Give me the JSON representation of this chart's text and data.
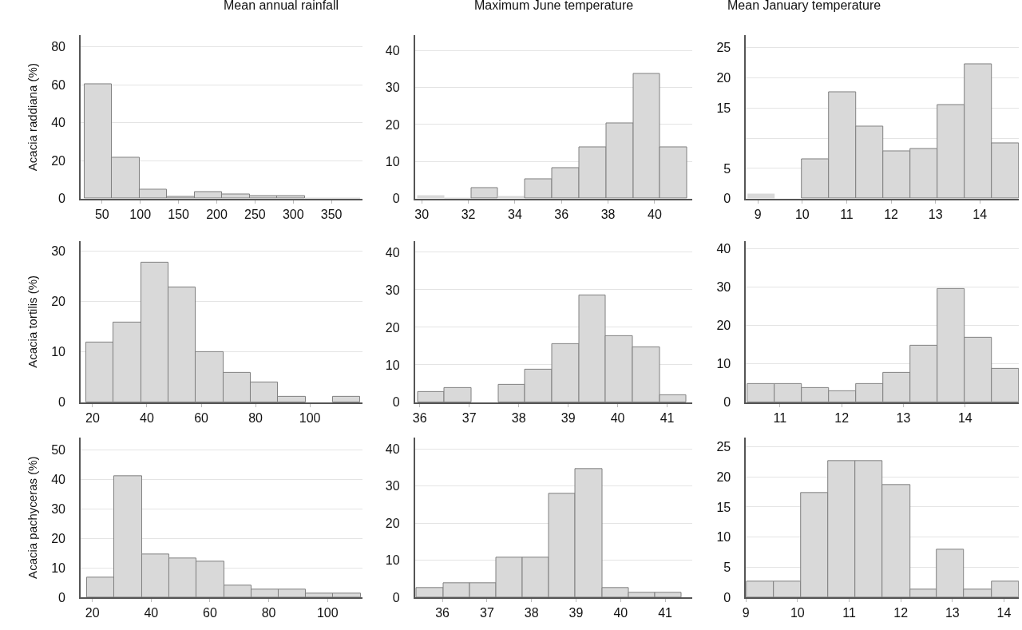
{
  "chart_data": [
    {
      "type": "histogram",
      "title": "Mean annual rainfall",
      "ylabel": "Acacia raddiana (%)",
      "color": "#d9d9d9",
      "grid": "y",
      "bins": [
        27,
        63,
        99,
        135,
        171,
        207,
        243,
        279,
        315,
        351,
        387
      ],
      "values": [
        60.5,
        21.7,
        4.9,
        1.0,
        3.7,
        2.4,
        1.6,
        1.6,
        0.4,
        0.4
      ],
      "xlim": [
        22,
        391
      ],
      "xticks": [
        50,
        100,
        150,
        200,
        250,
        300,
        350
      ],
      "ylim": [
        0,
        86
      ],
      "yticks": [
        0,
        20,
        40,
        60,
        80
      ]
    },
    {
      "type": "histogram",
      "title": "Maximum June temperature",
      "color": "#d9d9d9",
      "grid": "y",
      "bins": [
        29.8,
        30.96,
        32.12,
        33.28,
        34.44,
        35.6,
        36.76,
        37.92,
        39.08,
        40.24,
        41.4
      ],
      "values": [
        0.9,
        0.4,
        2.9,
        0.8,
        5.2,
        8.2,
        13.8,
        20.3,
        33.6,
        13.8
      ],
      "xlim": [
        29.7,
        41.6
      ],
      "xticks": [
        30,
        32,
        34,
        36,
        38,
        40
      ],
      "ylim": [
        0,
        44
      ],
      "yticks": [
        0,
        10,
        20,
        30,
        40
      ]
    },
    {
      "type": "histogram",
      "title": "Mean January temperature",
      "color": "#d9d9d9",
      "grid": "y",
      "bins": [
        8.76,
        9.37,
        9.98,
        10.6,
        11.21,
        11.83,
        12.44,
        13.04,
        13.66,
        14.27,
        14.88
      ],
      "values": [
        0.8,
        0,
        6.5,
        17.6,
        12.0,
        7.8,
        8.2,
        15.5,
        22.3,
        9.1
      ],
      "xlim": [
        8.73,
        14.88
      ],
      "xticks": [
        9,
        10,
        11,
        12,
        13,
        14
      ],
      "ylim": [
        0,
        27
      ],
      "yticks": [
        0,
        5,
        {
          "value": 10,
          "label": null
        },
        15,
        20,
        25
      ]
    },
    {
      "type": "histogram",
      "ylabel": "Acacia tortilis (%)",
      "color": "#d9d9d9",
      "grid": "y",
      "bins": [
        17.6,
        27.7,
        37.8,
        47.9,
        58,
        68.1,
        78.2,
        88.3,
        98.4,
        108.5,
        118.6
      ],
      "values": [
        11.9,
        15.9,
        27.7,
        22.8,
        10.0,
        5.9,
        4.0,
        1.1,
        0,
        1.1
      ],
      "xlim": [
        15.6,
        119.5
      ],
      "xticks": [
        20,
        40,
        60,
        80,
        100
      ],
      "ylim": [
        0,
        32
      ],
      "yticks": [
        0,
        10,
        20,
        30
      ]
    },
    {
      "type": "histogram",
      "color": "#d9d9d9",
      "grid": "y",
      "bins": [
        35.96,
        36.5,
        37.05,
        37.59,
        38.13,
        38.67,
        39.22,
        39.76,
        40.31,
        40.85,
        41.39
      ],
      "values": [
        2.8,
        3.8,
        0,
        4.7,
        8.8,
        15.6,
        28.6,
        17.6,
        14.6,
        1.9
      ],
      "xlim": [
        35.9,
        41.5
      ],
      "xticks": [
        36,
        37,
        38,
        39,
        40,
        41
      ],
      "ylim": [
        0,
        43
      ],
      "yticks": [
        0,
        10,
        20,
        30,
        40
      ]
    },
    {
      "type": "histogram",
      "color": "#d9d9d9",
      "grid": "y",
      "bins": [
        10.47,
        10.91,
        11.35,
        11.79,
        12.23,
        12.67,
        13.11,
        13.55,
        13.99,
        14.43,
        14.87
      ],
      "values": [
        4.8,
        4.8,
        3.8,
        2.9,
        4.8,
        7.8,
        14.7,
        29.6,
        16.8,
        8.7
      ],
      "xlim": [
        10.45,
        14.87
      ],
      "xticks": [
        11,
        12,
        13,
        14
      ],
      "ylim": [
        0,
        42
      ],
      "yticks": [
        0,
        10,
        20,
        30,
        40
      ]
    },
    {
      "type": "histogram",
      "ylabel": "Acacia pachyceras (%)",
      "color": "#d9d9d9",
      "grid": "y",
      "bins": [
        18.1,
        27.5,
        36.8,
        46.2,
        55.4,
        64.8,
        74.1,
        83.3,
        92.6,
        101.9,
        111.2
      ],
      "values": [
        6.7,
        41.1,
        14.6,
        13.3,
        12.0,
        4.1,
        2.7,
        2.7,
        1.4,
        1.4
      ],
      "xlim": [
        16,
        112
      ],
      "xticks": [
        20,
        40,
        60,
        80,
        100
      ],
      "ylim": [
        0,
        54
      ],
      "yticks": [
        0,
        10,
        20,
        30,
        40,
        50
      ]
    },
    {
      "type": "histogram",
      "color": "#d9d9d9",
      "grid": "y",
      "bins": [
        35.42,
        36.02,
        36.62,
        37.2,
        37.8,
        38.39,
        38.99,
        39.59,
        40.18,
        40.78,
        41.36
      ],
      "values": [
        2.6,
        3.9,
        3.9,
        10.6,
        10.6,
        28.0,
        34.7,
        2.6,
        1.3,
        1.3
      ],
      "xlim": [
        35.38,
        41.6
      ],
      "xticks": [
        36,
        37,
        38,
        39,
        40,
        41
      ],
      "ylim": [
        0,
        43
      ],
      "yticks": [
        0,
        10,
        20,
        30,
        40
      ]
    },
    {
      "type": "histogram",
      "color": "#d9d9d9",
      "grid": "y",
      "bins": [
        9.02,
        9.54,
        10.07,
        10.6,
        11.12,
        11.65,
        12.18,
        12.7,
        13.23,
        13.76,
        14.29
      ],
      "values": [
        2.6,
        2.6,
        17.3,
        22.6,
        22.6,
        18.7,
        1.3,
        7.9,
        1.3,
        2.6
      ],
      "xlim": [
        9,
        14.29
      ],
      "xticks": [
        9,
        10,
        11,
        12,
        13,
        14
      ],
      "ylim": [
        0,
        26.5
      ],
      "yticks": [
        0,
        5,
        10,
        15,
        20,
        25
      ]
    }
  ]
}
